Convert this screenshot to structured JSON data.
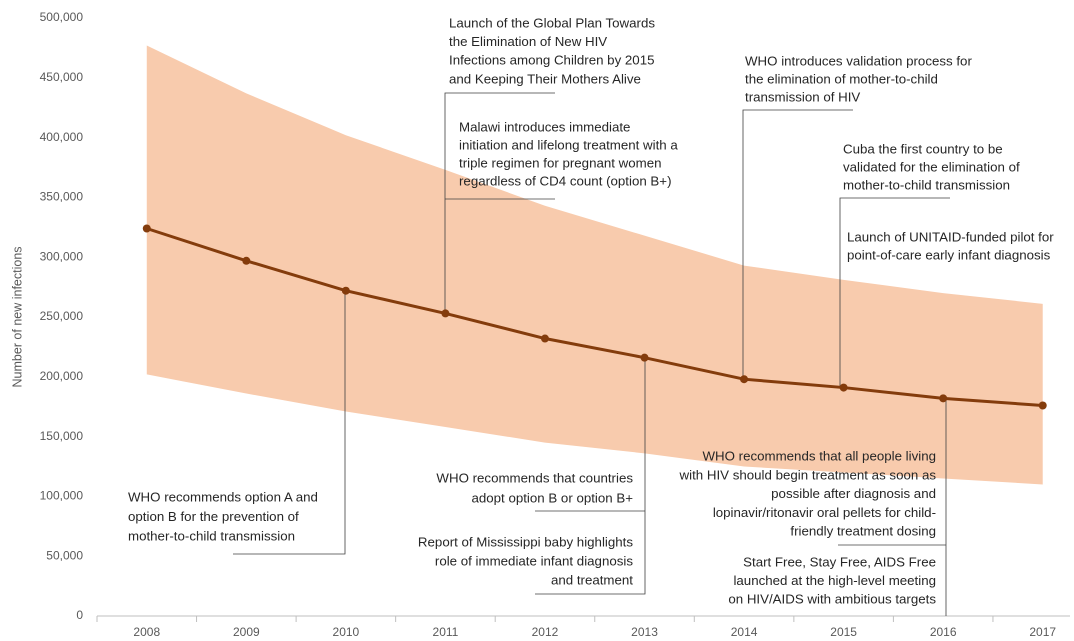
{
  "chart_data": {
    "type": "line",
    "y_label": "Number of new infections",
    "categories": [
      "2008",
      "2009",
      "2010",
      "2011",
      "2012",
      "2013",
      "2014",
      "2015",
      "2016",
      "2017"
    ],
    "values": [
      324000,
      297000,
      272000,
      253000,
      232000,
      216000,
      198000,
      191000,
      182000,
      176000
    ],
    "color": "#843c0c",
    "band": {
      "upper": [
        477000,
        437000,
        402000,
        373000,
        343000,
        318000,
        293000,
        281000,
        270000,
        261000
      ],
      "lower": [
        202000,
        186000,
        171000,
        158000,
        145000,
        136000,
        125000,
        120000,
        115000,
        110000
      ],
      "color": "#f8cbad"
    },
    "ylim": [
      0,
      500000
    ],
    "yticks": [
      0,
      {
        "value": 50000,
        "label": "50,000"
      },
      {
        "value": 100000,
        "label": "100,000"
      },
      {
        "value": 150000,
        "label": "150,000"
      },
      {
        "value": 200000,
        "label": "200,000"
      },
      {
        "value": 250000,
        "label": "250,000"
      },
      {
        "value": 300000,
        "label": "300,000"
      },
      {
        "value": 350000,
        "label": "350,000"
      },
      {
        "value": 400000,
        "label": "400,000"
      },
      {
        "value": 450000,
        "label": "450,000"
      },
      {
        "value": 500000,
        "label": "500,000"
      }
    ],
    "grid": false,
    "annotations": [
      {
        "lines": [
          "Launch of the Global Plan Towards",
          "the Elimination of New HIV",
          "Infections among Children by 2015",
          "and Keeping Their Mothers Alive"
        ]
      },
      {
        "lines": [
          "Malawi introduces immediate",
          "initiation and lifelong treatment with a",
          "triple regimen for  pregnant women",
          "regardless of CD4 count (option B+)"
        ]
      },
      {
        "lines": [
          "WHO introduces validation process for",
          "the elimination of mother-to-child",
          "transmission of HIV"
        ]
      },
      {
        "lines": [
          "Cuba the first country to be",
          "validated for the elimination of",
          "mother-to-child transmission"
        ]
      },
      {
        "lines": [
          "Launch of UNITAID-funded pilot for",
          "point-of-care early infant diagnosis"
        ]
      },
      {
        "lines": [
          "WHO recommends option A and",
          "option B for the prevention of",
          "mother-to-child transmission"
        ]
      },
      {
        "lines": [
          "WHO recommends that countries",
          "adopt option B or option B+"
        ]
      },
      {
        "lines": [
          "Report of Mississippi baby highlights",
          "role of immediate infant diagnosis",
          "and treatment"
        ]
      },
      {
        "lines": [
          "WHO recommends that all people living",
          "with HIV should begin treatment as soon as",
          "possible after diagnosis and",
          "lopinavir/ritonavir oral pellets for child-",
          "friendly treatment dosing"
        ]
      },
      {
        "lines": [
          "Start Free, Stay Free, AIDS Free",
          "launched at the high-level meeting",
          "on HIV/AIDS with ambitious targets"
        ]
      }
    ]
  }
}
